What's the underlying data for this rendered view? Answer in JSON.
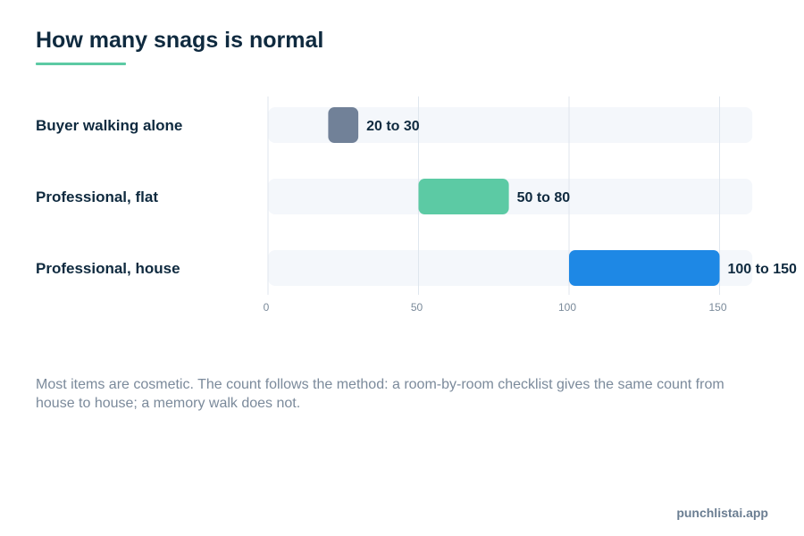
{
  "title": "How many snags is normal",
  "chart_data": {
    "type": "bar",
    "orientation": "horizontal",
    "categories": [
      "Buyer walking alone",
      "Professional, flat",
      "Professional, house"
    ],
    "ranges": [
      {
        "category": "Buyer walking alone",
        "low": 20,
        "high": 30,
        "label": "20 to 30",
        "color": "#718198"
      },
      {
        "category": "Professional, flat",
        "low": 50,
        "high": 80,
        "label": "50 to 80",
        "color": "#5ccaa4"
      },
      {
        "category": "Professional, house",
        "low": 100,
        "high": 150,
        "label": "100 to 150",
        "color": "#1e88e5"
      }
    ],
    "xticks": [
      0,
      50,
      100,
      150
    ],
    "xlim": [
      0,
      160
    ],
    "grid": true,
    "track_color": "#f4f7fb",
    "grid_color": "#dfe6ee"
  },
  "note": "Most items are cosmetic. The count follows the method: a room-by-room checklist gives the same count from house to house; a memory walk does not.",
  "footer": {
    "brand": "punchlistai.app"
  }
}
